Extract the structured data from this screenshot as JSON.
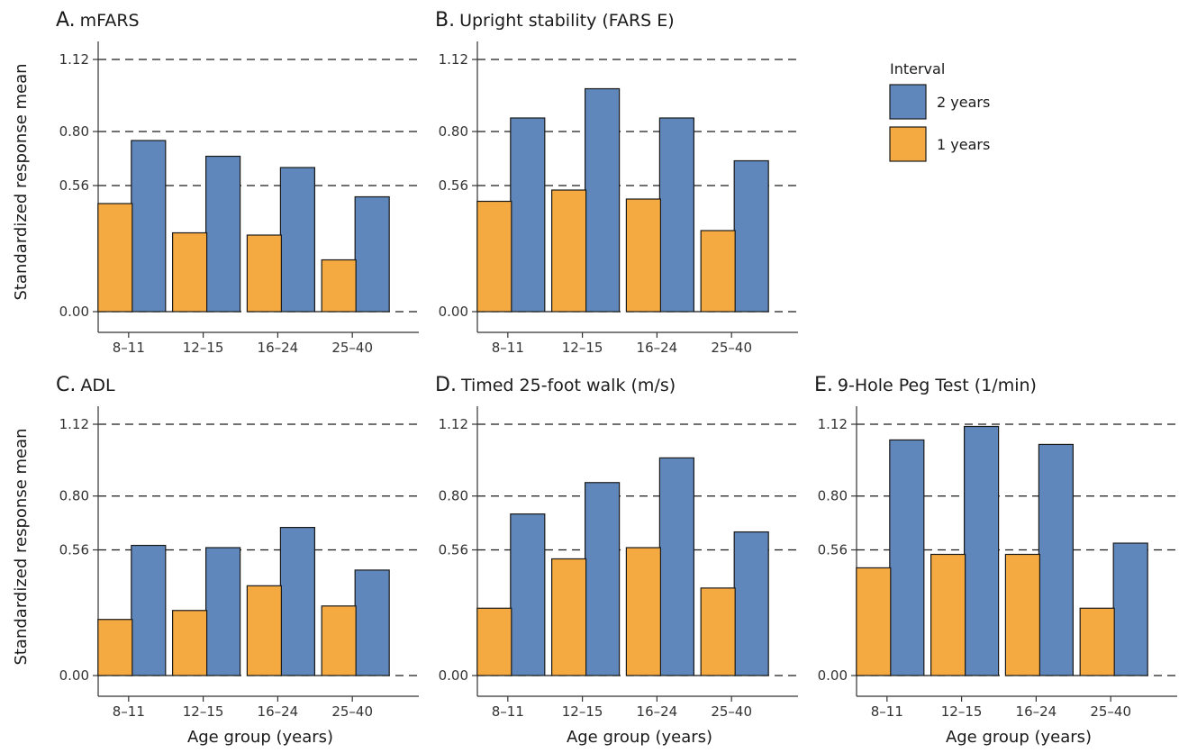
{
  "figure": {
    "ylabel": "Standardized response mean",
    "xlabel": "Age group (years)",
    "legend": {
      "title": "Interval",
      "items": [
        {
          "label": "2 years",
          "color": "#5f87bb"
        },
        {
          "label": "1 years",
          "color": "#f4a941"
        }
      ],
      "placement": "top-right"
    }
  },
  "chart_data": [
    {
      "panel": "A.",
      "title": "mFARS",
      "type": "bar",
      "categories": [
        "8–11",
        "12–15",
        "16–24",
        "25–40"
      ],
      "yticks": [
        "0.00",
        "0.56",
        "0.80",
        "1.12"
      ],
      "ylim": [
        0,
        1.12
      ],
      "grid": true,
      "series": [
        {
          "name": "2 years",
          "values": [
            0.76,
            0.69,
            0.64,
            0.51
          ]
        },
        {
          "name": "1 years",
          "values": [
            0.48,
            0.35,
            0.34,
            0.23
          ]
        }
      ]
    },
    {
      "panel": "B.",
      "title": "Upright stability (FARS E)",
      "type": "bar",
      "categories": [
        "8–11",
        "12–15",
        "16–24",
        "25–40"
      ],
      "yticks": [
        "0.00",
        "0.56",
        "0.80",
        "1.12"
      ],
      "ylim": [
        0,
        1.12
      ],
      "grid": true,
      "series": [
        {
          "name": "2 years",
          "values": [
            0.86,
            0.99,
            0.86,
            0.67
          ]
        },
        {
          "name": "1 years",
          "values": [
            0.49,
            0.54,
            0.5,
            0.36
          ]
        }
      ]
    },
    {
      "panel": "C.",
      "title": "ADL",
      "type": "bar",
      "categories": [
        "8–11",
        "12–15",
        "16–24",
        "25–40"
      ],
      "yticks": [
        "0.00",
        "0.56",
        "0.80",
        "1.12"
      ],
      "ylim": [
        0,
        1.12
      ],
      "grid": true,
      "series": [
        {
          "name": "2 years",
          "values": [
            0.58,
            0.57,
            0.66,
            0.47
          ]
        },
        {
          "name": "1 years",
          "values": [
            0.25,
            0.29,
            0.4,
            0.31
          ]
        }
      ]
    },
    {
      "panel": "D.",
      "title": "Timed 25-foot walk (m/s)",
      "type": "bar",
      "categories": [
        "8–11",
        "12–15",
        "16–24",
        "25–40"
      ],
      "yticks": [
        "0.00",
        "0.56",
        "0.80",
        "1.12"
      ],
      "ylim": [
        0,
        1.12
      ],
      "grid": true,
      "series": [
        {
          "name": "2 years",
          "values": [
            0.72,
            0.86,
            0.97,
            0.64
          ]
        },
        {
          "name": "1 years",
          "values": [
            0.3,
            0.52,
            0.57,
            0.39
          ]
        }
      ]
    },
    {
      "panel": "E.",
      "title": "9-Hole Peg Test (1/min)",
      "type": "bar",
      "categories": [
        "8–11",
        "12–15",
        "16–24",
        "25–40"
      ],
      "yticks": [
        "0.00",
        "0.56",
        "0.80",
        "1.12"
      ],
      "ylim": [
        0,
        1.12
      ],
      "grid": true,
      "series": [
        {
          "name": "2 years",
          "values": [
            1.05,
            1.11,
            1.03,
            0.59
          ]
        },
        {
          "name": "1 years",
          "values": [
            0.48,
            0.54,
            0.54,
            0.3
          ]
        }
      ]
    }
  ]
}
